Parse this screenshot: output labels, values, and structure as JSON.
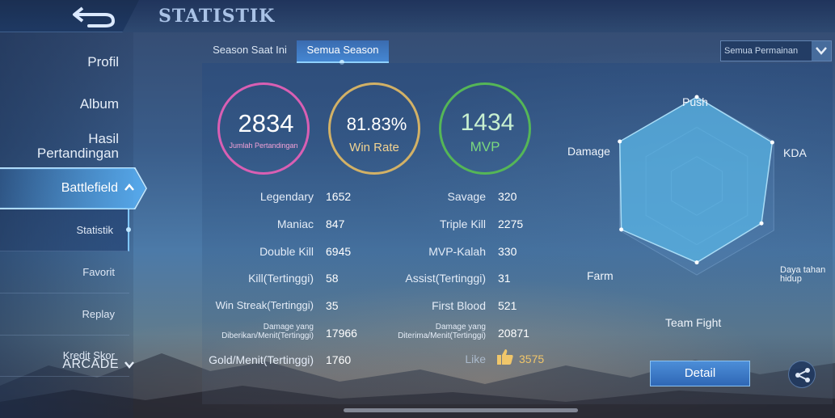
{
  "header": {
    "title": "STATISTIK"
  },
  "sidebar": {
    "items": [
      {
        "label": "Profil"
      },
      {
        "label": "Album"
      },
      {
        "label": "Hasil Pertandingan"
      },
      {
        "label": "Battlefield"
      }
    ],
    "sub_items": [
      {
        "label": "Statistik"
      },
      {
        "label": "Favorit"
      },
      {
        "label": "Replay"
      },
      {
        "label": "Kredit Skor"
      }
    ],
    "arcade": "ARCADE"
  },
  "tabs": [
    {
      "label": "Season Saat Ini"
    },
    {
      "label": "Semua Season"
    }
  ],
  "filter": {
    "selected": "Semua Permainan"
  },
  "summary": {
    "games": {
      "value": "2834",
      "label": "Jumlah Pertandingan"
    },
    "win_rate": {
      "value": "81.83%",
      "label": "Win Rate"
    },
    "mvp": {
      "value": "1434",
      "label": "MVP"
    }
  },
  "stats_left": [
    {
      "label": "Legendary",
      "value": "1652"
    },
    {
      "label": "Maniac",
      "value": "847"
    },
    {
      "label": "Double Kill",
      "value": "6945"
    },
    {
      "label": "Kill(Tertinggi)",
      "value": "58"
    },
    {
      "label": "Win Streak(Tertinggi)",
      "value": "35"
    },
    {
      "label": "Damage yang Diberikan/Menit(Tertinggi)",
      "value": "17966"
    },
    {
      "label": "Gold/Menit(Tertinggi)",
      "value": "1760"
    }
  ],
  "stats_right": [
    {
      "label": "Savage",
      "value": "320"
    },
    {
      "label": "Triple Kill",
      "value": "2275"
    },
    {
      "label": "MVP-Kalah",
      "value": "330"
    },
    {
      "label": "Assist(Tertinggi)",
      "value": "31"
    },
    {
      "label": "First Blood",
      "value": "521"
    },
    {
      "label": "Damage yang Diterima/Menit(Tertinggi)",
      "value": "20871"
    }
  ],
  "like": {
    "label": "Like",
    "value": "3575"
  },
  "radar": {
    "axes": [
      {
        "label": "Push",
        "value": 1.0
      },
      {
        "label": "KDA",
        "value": 0.98
      },
      {
        "label": "Daya tahan hidup",
        "value": 0.84
      },
      {
        "label": "Team Fight",
        "value": 0.86
      },
      {
        "label": "Farm",
        "value": 0.98
      },
      {
        "label": "Damage",
        "value": 1.0
      }
    ],
    "fill_color": "#5ab8e8"
  },
  "detail_button": "Detail"
}
